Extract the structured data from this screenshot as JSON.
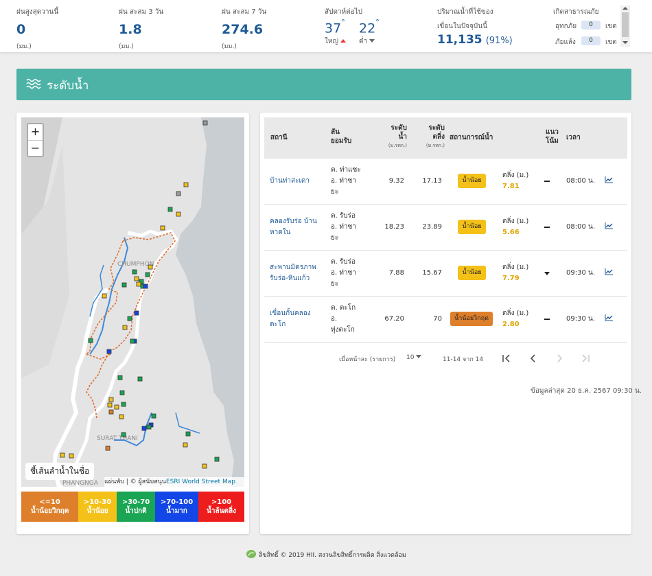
{
  "stats": {
    "rain_max": {
      "label": "ฝนสูงสุดวานนี้",
      "value": "0",
      "unit": "(มม.)"
    },
    "rain_3d": {
      "label": "ฝน สะสม 3 วัน",
      "value": "1.8",
      "unit": "(มม.)"
    },
    "rain_7d": {
      "label": "ฝน สะสม 7 วัน",
      "value": "274.6",
      "unit": "(มม.)"
    },
    "temp": {
      "label": "สัปดาห์ต่อไป",
      "high": "37",
      "low": "22",
      "high_label": "ใหญ่",
      "low_label": "ต่ำ",
      "deg": "°"
    },
    "dam": {
      "label1": "ปริมาณน้ำที่ใช้ของ",
      "label2": "เขื่อนในปัจจุบันนี้",
      "value": "11,135",
      "pct": "(91%)"
    },
    "disaster": {
      "label": "เกิดสาธารณภัย",
      "flood_label": "อุทกภัย",
      "flood_value": "0",
      "drought_label": "ภัยแล้ง",
      "drought_value": "0",
      "unit": "เขต"
    }
  },
  "banner": {
    "title": "ระดับน้ำ"
  },
  "map": {
    "zoom_in": "+",
    "zoom_out": "−",
    "river_label": "ชี้เส้นลำน้ำในชื่อ",
    "attr_prefix": "แผ่นพับ | © ผู้สนับสนุน",
    "attr_link": "ESRI World Street Map",
    "place1": "CHUMPHON",
    "place2": "SURAT THANI",
    "place3": "PHANGNGA"
  },
  "legend": [
    {
      "range": "<=10",
      "text": "น้ำน้อยวิกฤต",
      "color": "#dd7f2b"
    },
    {
      "range": ">10-30",
      "text": "น้ำน้อย",
      "color": "#f4c119"
    },
    {
      "range": ">30-70",
      "text": "น้ำปกติ",
      "color": "#19a553"
    },
    {
      "range": ">70-100",
      "text": "น้ำมาก",
      "color": "#1346e6"
    },
    {
      "range": ">100",
      "text": "น้ำล้นตลิ่ง",
      "color": "#ee1d1d"
    }
  ],
  "table": {
    "headers": {
      "station": "สถานี",
      "basin1": "ลัน",
      "basin2": "ยอมรับ",
      "level1": "ระดับ",
      "level2": "น้ำ",
      "level_unit": "(ม.รทก.)",
      "bank1": "ระดับ",
      "bank2": "ตลิ่ง",
      "bank_unit": "(ม.รทก.)",
      "status": "สถานการณ์น้ำ",
      "trend1": "แนว",
      "trend2": "โน้ม",
      "time": "เวลา"
    },
    "rows": [
      {
        "station": [
          "บ้านท่าสะเดา"
        ],
        "loc": [
          "ต. ท่าแซะ",
          "อ. ท่าซา",
          "ยะ"
        ],
        "level": "9.32",
        "bank": "17.13",
        "status": "น้ำน้อย",
        "status_color": "#f4c119",
        "bank_label": "ตลิ่ง (ม.)",
        "bank_val": "7.81",
        "trend": "dash",
        "time": "08:00 น."
      },
      {
        "station": [
          "คลองรับร่อ บ้าน",
          "หาดใน"
        ],
        "loc": [
          "ต. รับร่อ",
          "อ. ท่าซา",
          "ยะ"
        ],
        "level": "18.23",
        "bank": "23.89",
        "status": "น้ำน้อย",
        "status_color": "#f4c119",
        "bank_label": "ตลิ่ง (ม.)",
        "bank_val": "5.66",
        "trend": "dash",
        "time": "08:00 น."
      },
      {
        "station": [
          "สะพานมิตรภาพ",
          "รับร่อ-หินแก้ว"
        ],
        "loc": [
          "ต. รับร่อ",
          "อ. ท่าซา",
          "ยะ"
        ],
        "level": "7.88",
        "bank": "15.67",
        "status": "น้ำน้อย",
        "status_color": "#f4c119",
        "bank_label": "ตลิ่ง (ม.)",
        "bank_val": "7.79",
        "trend": "down",
        "time": "09:30 น."
      },
      {
        "station": [
          "เขื่อนกั้นคลอง",
          "ตะโก"
        ],
        "loc": [
          "ต. ตะโก",
          "อ.",
          "ทุ่งตะโก"
        ],
        "level": "67.20",
        "bank": "70",
        "status": "น้ำน้อยวิกฤต",
        "status_color": "#dd7f2b",
        "bank_label": "ตลิ่ง (ม.)",
        "bank_val": "2.80",
        "trend": "dash",
        "time": "09:30 น."
      }
    ],
    "pagination": {
      "per_page_label": "เมื่อหน้าละ (รายการ)",
      "per_page": "10",
      "range": "11-14 จาก 14"
    },
    "updated": "ข้อมูลล่าสุด 20 ธ.ค. 2567 09:30 น."
  },
  "footer": {
    "text": "ลิขสิทธิ์ © 2019 HII. สงวนลิขสิทธิ์การผลิต สิ่งแวดล้อม"
  }
}
